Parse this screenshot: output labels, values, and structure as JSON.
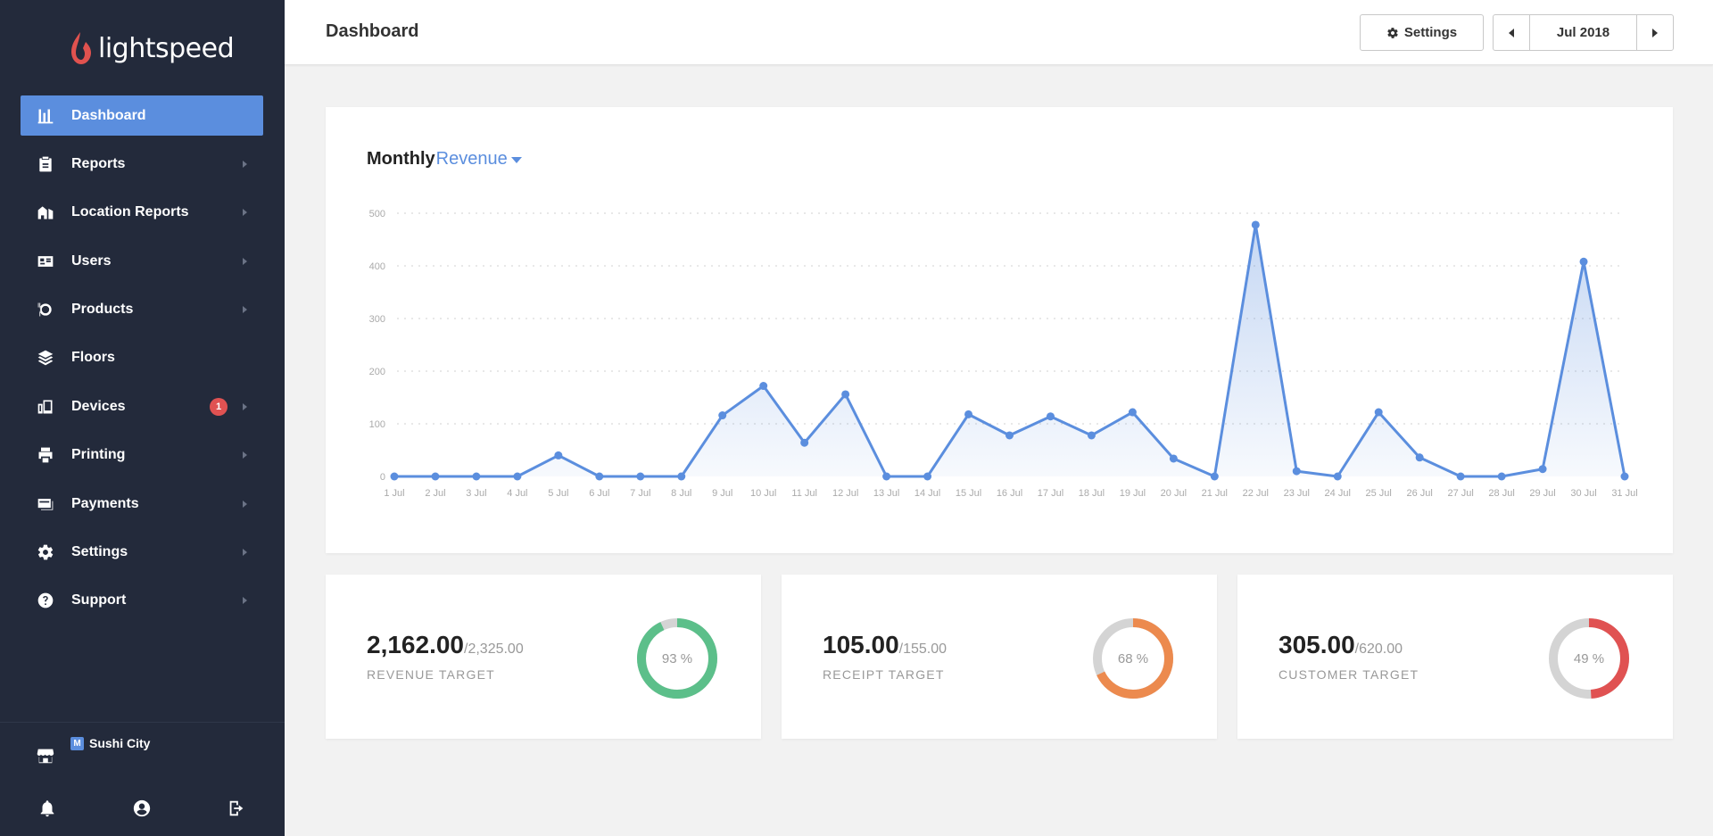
{
  "app": {
    "logo_text": "lightspeed"
  },
  "sidebar": {
    "items": [
      {
        "label": "Dashboard",
        "icon": "bar-chart-icon",
        "active": true,
        "arrow": false
      },
      {
        "label": "Reports",
        "icon": "clipboard-icon",
        "arrow": true
      },
      {
        "label": "Location Reports",
        "icon": "building-icon",
        "arrow": true
      },
      {
        "label": "Users",
        "icon": "id-card-icon",
        "arrow": true
      },
      {
        "label": "Products",
        "icon": "dish-icon",
        "arrow": true
      },
      {
        "label": "Floors",
        "icon": "layers-icon",
        "arrow": false
      },
      {
        "label": "Devices",
        "icon": "devices-icon",
        "arrow": true,
        "badge": "1"
      },
      {
        "label": "Printing",
        "icon": "printer-icon",
        "arrow": true
      },
      {
        "label": "Payments",
        "icon": "credit-card-icon",
        "arrow": true
      },
      {
        "label": "Settings",
        "icon": "gear-icon",
        "arrow": true
      },
      {
        "label": "Support",
        "icon": "question-circle-icon",
        "arrow": true
      }
    ],
    "store": {
      "badge": "M",
      "name": "Sushi City"
    },
    "bottom_icons": [
      "bell-icon",
      "user-circle-icon",
      "logout-icon"
    ]
  },
  "header": {
    "title": "Dashboard",
    "settings_label": "Settings",
    "date_label": "Jul 2018"
  },
  "chart_title": {
    "prefix": "Monthly",
    "metric": "Revenue"
  },
  "chart_data": {
    "type": "area",
    "x": [
      "1 Jul",
      "2 Jul",
      "3 Jul",
      "4 Jul",
      "5 Jul",
      "6 Jul",
      "7 Jul",
      "8 Jul",
      "9 Jul",
      "10 Jul",
      "11 Jul",
      "12 Jul",
      "13 Jul",
      "14 Jul",
      "15 Jul",
      "16 Jul",
      "17 Jul",
      "18 Jul",
      "19 Jul",
      "20 Jul",
      "21 Jul",
      "22 Jul",
      "23 Jul",
      "24 Jul",
      "25 Jul",
      "26 Jul",
      "27 Jul",
      "28 Jul",
      "29 Jul",
      "30 Jul",
      "31 Jul"
    ],
    "values": [
      0,
      0,
      0,
      0,
      40,
      0,
      0,
      0,
      116,
      172,
      64,
      156,
      0,
      0,
      118,
      78,
      114,
      78,
      122,
      34,
      0,
      478,
      10,
      0,
      122,
      36,
      0,
      0,
      14,
      408,
      0
    ],
    "yticks": [
      0,
      100,
      200,
      300,
      400,
      500
    ],
    "ylim": [
      0,
      500
    ],
    "grid": true,
    "color": "#5b8ede"
  },
  "targets": [
    {
      "value": "2,162.00",
      "total": "/2,325.00",
      "label": "REVENUE TARGET",
      "percent": 93,
      "percent_label": "93 %",
      "color": "#5cbf8a"
    },
    {
      "value": "105.00",
      "total": "/155.00",
      "label": "RECEIPT TARGET",
      "percent": 68,
      "percent_label": "68 %",
      "color": "#ec8a4e"
    },
    {
      "value": "305.00",
      "total": "/620.00",
      "label": "CUSTOMER TARGET",
      "percent": 49,
      "percent_label": "49 %",
      "color": "#e05252"
    }
  ]
}
